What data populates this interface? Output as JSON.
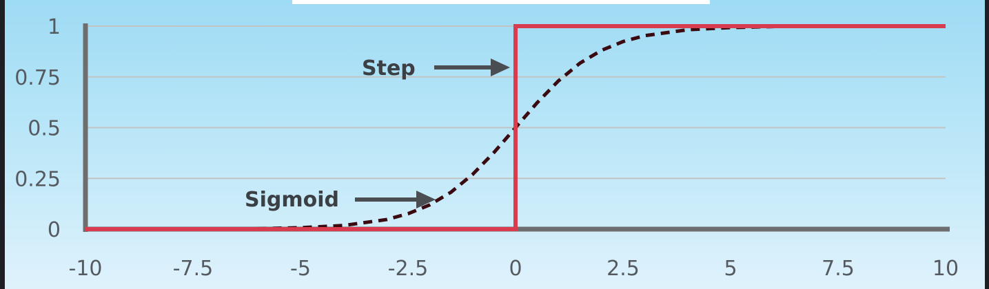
{
  "chart_data": {
    "type": "line",
    "title": "",
    "xlabel": "",
    "ylabel": "",
    "xlim": [
      -10,
      10
    ],
    "ylim": [
      0,
      1
    ],
    "x_ticks": [
      "-10",
      "-7.5",
      "-5",
      "-2.5",
      "0",
      "2.5",
      "5",
      "7.5",
      "10"
    ],
    "y_ticks": [
      "0",
      "0.25",
      "0.5",
      "0.75",
      "1"
    ],
    "grid": true,
    "series": [
      {
        "name": "Step",
        "style": "solid",
        "color": "#d93b4f",
        "x": [
          -10,
          0,
          0,
          10
        ],
        "y": [
          0,
          0,
          1,
          1
        ]
      },
      {
        "name": "Sigmoid",
        "style": "dashed",
        "color": "#3a0a10",
        "x": [
          -6,
          -5,
          -4,
          -3,
          -2.5,
          -2,
          -1.5,
          -1,
          -0.5,
          0,
          0.5,
          1,
          1.5,
          2,
          2.5,
          3,
          4,
          5,
          6
        ],
        "y": [
          0.002,
          0.007,
          0.018,
          0.047,
          0.076,
          0.119,
          0.182,
          0.269,
          0.378,
          0.5,
          0.622,
          0.731,
          0.818,
          0.881,
          0.924,
          0.953,
          0.982,
          0.993,
          0.998
        ]
      }
    ],
    "annotations": [
      {
        "text": "Step",
        "points_to": "Step"
      },
      {
        "text": "Sigmoid",
        "points_to": "Sigmoid"
      }
    ]
  }
}
